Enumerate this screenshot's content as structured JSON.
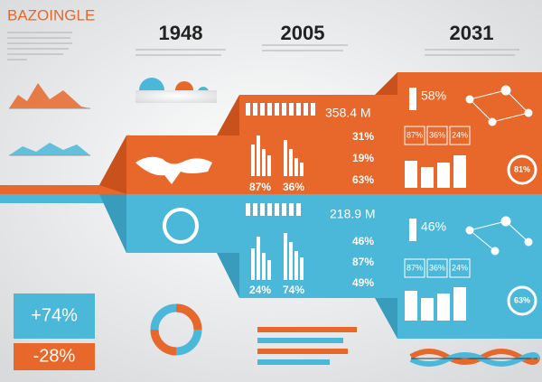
{
  "header": {
    "title": "BAZOINGLE"
  },
  "years": [
    "1948",
    "2005",
    "2031"
  ],
  "panel_2005": {
    "top": {
      "total": "358.4 M",
      "stats": [
        "31%",
        "19%",
        "63%"
      ],
      "bars": [
        "87%",
        "36%"
      ]
    },
    "bottom": {
      "total": "218.9 M",
      "stats": [
        "46%",
        "87%",
        "49%"
      ],
      "bars": [
        "24%",
        "74%"
      ]
    }
  },
  "panel_2031": {
    "top": {
      "main": "58%",
      "stats": [
        "87%",
        "36%",
        "24%"
      ],
      "circle": "81%"
    },
    "bottom": {
      "main": "46%",
      "stats": [
        "87%",
        "36%",
        "24%"
      ],
      "circle": "63%"
    }
  },
  "summary": {
    "increase": "+74%",
    "decrease": "-28%"
  }
}
